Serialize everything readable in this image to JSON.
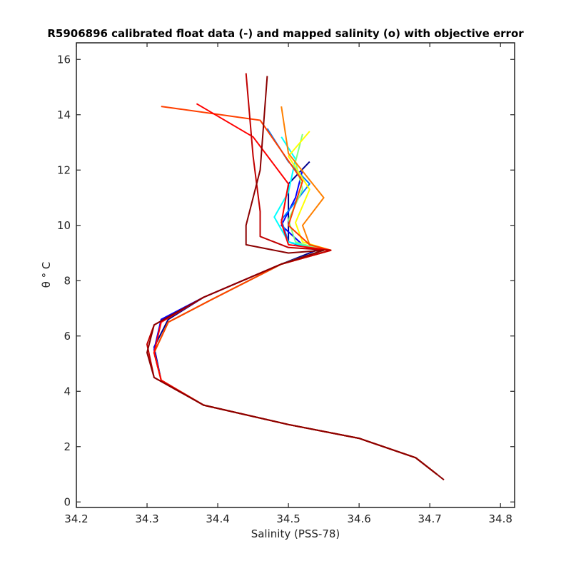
{
  "chart_data": {
    "type": "line",
    "title": "R5906896 calibrated float data (-) and mapped salinity (o) with objective error",
    "xlabel": "Salinity (PSS-78)",
    "ylabel": "θ ° C",
    "xlim": [
      34.2,
      34.82
    ],
    "ylim": [
      -0.2,
      16.6
    ],
    "x_ticks": [
      "34.2",
      "34.3",
      "34.4",
      "34.5",
      "34.6",
      "34.7",
      "34.8"
    ],
    "y_ticks": [
      "0",
      "2",
      "4",
      "6",
      "8",
      "10",
      "12",
      "14",
      "16"
    ],
    "grid": false,
    "colormap": "jet (profile order)",
    "series": [
      {
        "color": "#00008f",
        "points": [
          [
            34.53,
            12.3
          ],
          [
            34.5,
            11.5
          ],
          [
            34.5,
            10.5
          ],
          [
            34.5,
            9.4
          ],
          [
            34.54,
            9.1
          ],
          [
            34.49,
            8.6
          ],
          [
            34.38,
            7.4
          ],
          [
            34.33,
            6.6
          ],
          [
            34.31,
            5.6
          ],
          [
            34.32,
            4.4
          ],
          [
            34.38,
            3.5
          ],
          [
            34.5,
            2.8
          ],
          [
            34.6,
            2.3
          ],
          [
            34.68,
            1.6
          ],
          [
            34.71,
            1.0
          ]
        ]
      },
      {
        "color": "#0000ff",
        "points": [
          [
            34.52,
            12.0
          ],
          [
            34.51,
            11.0
          ],
          [
            34.49,
            10.0
          ],
          [
            34.52,
            9.3
          ],
          [
            34.55,
            9.1
          ],
          [
            34.49,
            8.6
          ],
          [
            34.38,
            7.4
          ],
          [
            34.32,
            6.6
          ],
          [
            34.31,
            5.5
          ],
          [
            34.32,
            4.4
          ],
          [
            34.38,
            3.5
          ],
          [
            34.5,
            2.8
          ],
          [
            34.6,
            2.3
          ],
          [
            34.68,
            1.6
          ],
          [
            34.71,
            1.0
          ]
        ]
      },
      {
        "color": "#0080ff",
        "points": [
          [
            34.47,
            13.5
          ],
          [
            34.5,
            12.3
          ],
          [
            34.53,
            11.5
          ],
          [
            34.49,
            10.2
          ],
          [
            34.5,
            9.4
          ],
          [
            34.55,
            9.1
          ],
          [
            34.49,
            8.6
          ],
          [
            34.39,
            7.3
          ],
          [
            34.33,
            6.5
          ],
          [
            34.31,
            5.4
          ],
          [
            34.32,
            4.4
          ],
          [
            34.38,
            3.5
          ],
          [
            34.5,
            2.8
          ],
          [
            34.6,
            2.3
          ],
          [
            34.68,
            1.6
          ],
          [
            34.71,
            1.0
          ]
        ]
      },
      {
        "color": "#00ffff",
        "points": [
          [
            34.49,
            13.2
          ],
          [
            34.51,
            12.4
          ],
          [
            34.5,
            11.2
          ],
          [
            34.48,
            10.3
          ],
          [
            34.5,
            9.4
          ],
          [
            34.55,
            9.1
          ],
          [
            34.49,
            8.6
          ],
          [
            34.39,
            7.3
          ],
          [
            34.33,
            6.5
          ],
          [
            34.31,
            5.4
          ],
          [
            34.32,
            4.4
          ],
          [
            34.38,
            3.5
          ],
          [
            34.5,
            2.8
          ],
          [
            34.6,
            2.3
          ],
          [
            34.68,
            1.6
          ],
          [
            34.71,
            1.0
          ]
        ]
      },
      {
        "color": "#80ff80",
        "points": [
          [
            34.52,
            13.3
          ],
          [
            34.51,
            12.3
          ],
          [
            34.52,
            11.3
          ],
          [
            34.5,
            10.2
          ],
          [
            34.51,
            9.4
          ],
          [
            34.55,
            9.1
          ],
          [
            34.49,
            8.6
          ],
          [
            34.39,
            7.3
          ],
          [
            34.33,
            6.5
          ],
          [
            34.31,
            5.4
          ],
          [
            34.32,
            4.4
          ],
          [
            34.38,
            3.5
          ],
          [
            34.5,
            2.8
          ],
          [
            34.6,
            2.3
          ],
          [
            34.68,
            1.6
          ],
          [
            34.71,
            1.0
          ]
        ]
      },
      {
        "color": "#ffff00",
        "points": [
          [
            34.53,
            13.4
          ],
          [
            34.5,
            12.5
          ],
          [
            34.53,
            11.3
          ],
          [
            34.51,
            10.1
          ],
          [
            34.52,
            9.4
          ],
          [
            34.56,
            9.1
          ],
          [
            34.49,
            8.6
          ],
          [
            34.39,
            7.3
          ],
          [
            34.33,
            6.5
          ],
          [
            34.31,
            5.4
          ],
          [
            34.32,
            4.4
          ],
          [
            34.38,
            3.5
          ],
          [
            34.5,
            2.8
          ],
          [
            34.6,
            2.3
          ],
          [
            34.68,
            1.6
          ],
          [
            34.71,
            1.0
          ]
        ]
      },
      {
        "color": "#ff8000",
        "points": [
          [
            34.49,
            14.3
          ],
          [
            34.5,
            12.6
          ],
          [
            34.55,
            11.0
          ],
          [
            34.52,
            10.0
          ],
          [
            34.53,
            9.3
          ],
          [
            34.56,
            9.1
          ],
          [
            34.49,
            8.6
          ],
          [
            34.39,
            7.3
          ],
          [
            34.33,
            6.5
          ],
          [
            34.31,
            5.4
          ],
          [
            34.32,
            4.4
          ],
          [
            34.38,
            3.5
          ],
          [
            34.5,
            2.8
          ],
          [
            34.6,
            2.3
          ],
          [
            34.68,
            1.6
          ],
          [
            34.71,
            1.0
          ]
        ]
      },
      {
        "color": "#ff4000",
        "points": [
          [
            34.32,
            14.3
          ],
          [
            34.46,
            13.8
          ],
          [
            34.52,
            11.6
          ],
          [
            34.5,
            10.0
          ],
          [
            34.53,
            9.3
          ],
          [
            34.56,
            9.1
          ],
          [
            34.49,
            8.6
          ],
          [
            34.39,
            7.3
          ],
          [
            34.33,
            6.5
          ],
          [
            34.31,
            5.4
          ],
          [
            34.32,
            4.4
          ],
          [
            34.38,
            3.5
          ],
          [
            34.5,
            2.8
          ],
          [
            34.6,
            2.3
          ],
          [
            34.68,
            1.6
          ],
          [
            34.71,
            1.0
          ]
        ]
      },
      {
        "color": "#ff0000",
        "points": [
          [
            34.37,
            14.4
          ],
          [
            34.45,
            13.2
          ],
          [
            34.5,
            11.5
          ],
          [
            34.49,
            10.1
          ],
          [
            34.5,
            9.3
          ],
          [
            34.56,
            9.1
          ],
          [
            34.49,
            8.6
          ],
          [
            34.38,
            7.4
          ],
          [
            34.32,
            6.5
          ],
          [
            34.31,
            5.4
          ],
          [
            34.32,
            4.4
          ],
          [
            34.38,
            3.5
          ],
          [
            34.5,
            2.8
          ],
          [
            34.6,
            2.3
          ],
          [
            34.68,
            1.6
          ],
          [
            34.71,
            1.0
          ]
        ]
      },
      {
        "color": "#c00000",
        "points": [
          [
            34.44,
            15.5
          ],
          [
            34.45,
            12.5
          ],
          [
            34.46,
            10.5
          ],
          [
            34.46,
            9.6
          ],
          [
            34.5,
            9.2
          ],
          [
            34.56,
            9.1
          ],
          [
            34.49,
            8.6
          ],
          [
            34.38,
            7.4
          ],
          [
            34.31,
            6.4
          ],
          [
            34.3,
            5.7
          ],
          [
            34.31,
            4.5
          ],
          [
            34.38,
            3.5
          ],
          [
            34.5,
            2.8
          ],
          [
            34.6,
            2.3
          ],
          [
            34.68,
            1.6
          ],
          [
            34.71,
            1.0
          ]
        ]
      },
      {
        "color": "#8b0000",
        "points": [
          [
            34.47,
            15.4
          ],
          [
            34.46,
            12.0
          ],
          [
            34.44,
            10.0
          ],
          [
            34.44,
            9.3
          ],
          [
            34.5,
            9.0
          ],
          [
            34.55,
            9.1
          ],
          [
            34.49,
            8.6
          ],
          [
            34.38,
            7.4
          ],
          [
            34.31,
            6.4
          ],
          [
            34.3,
            5.4
          ],
          [
            34.31,
            4.5
          ],
          [
            34.38,
            3.5
          ],
          [
            34.5,
            2.8
          ],
          [
            34.6,
            2.3
          ],
          [
            34.68,
            1.6
          ],
          [
            34.71,
            1.0
          ],
          [
            34.72,
            0.8
          ]
        ]
      }
    ]
  }
}
